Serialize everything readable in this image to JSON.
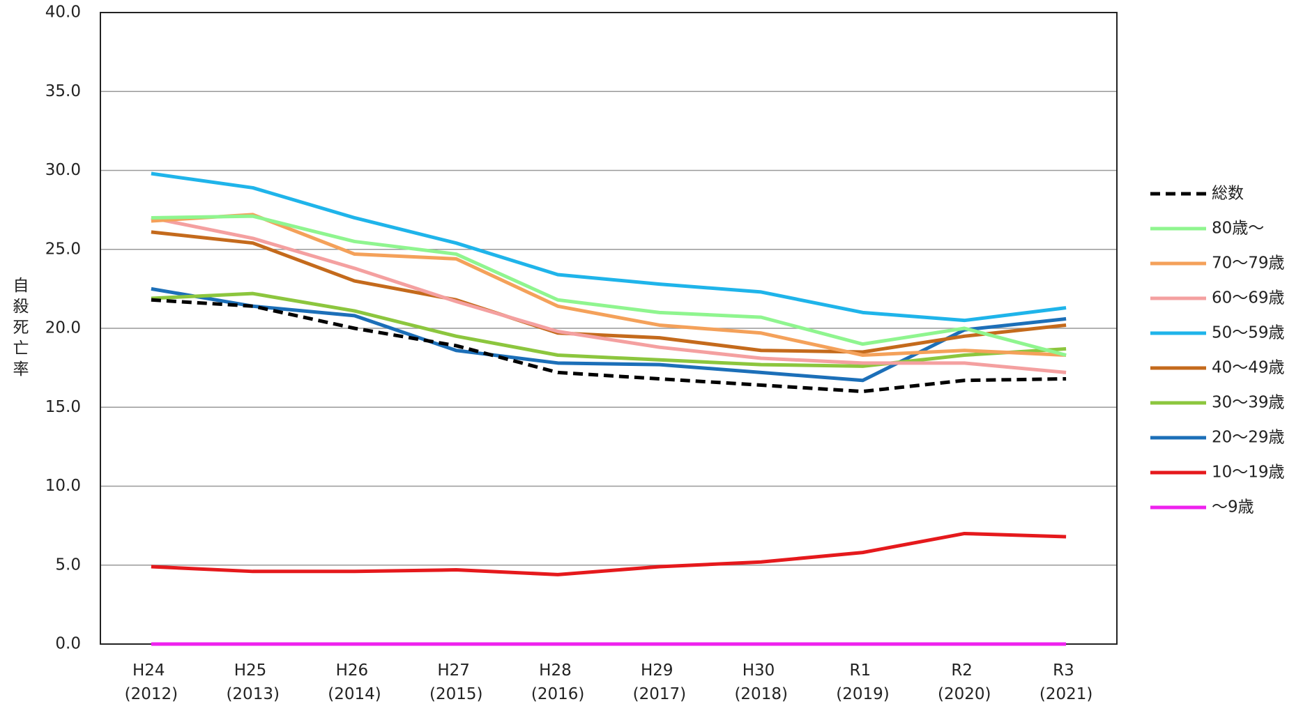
{
  "chart_data": {
    "type": "line",
    "y_label": "自殺死亡率",
    "categories": [
      "H24 (2012)",
      "H25 (2013)",
      "H26 (2014)",
      "H27 (2015)",
      "H28 (2016)",
      "H29 (2017)",
      "H30 (2018)",
      "R1 (2019)",
      "R2 (2020)",
      "R3 (2021)"
    ],
    "ylim": [
      0,
      40
    ],
    "yticks": [
      {
        "value": 0,
        "label": "0.0"
      },
      {
        "value": 5,
        "label": "5.0"
      },
      {
        "value": 10,
        "label": "10.0"
      },
      {
        "value": 15,
        "label": "15.0"
      },
      {
        "value": 20,
        "label": "20.0"
      },
      {
        "value": 25,
        "label": "25.0"
      },
      {
        "value": 30,
        "label": "30.0"
      },
      {
        "value": 35,
        "label": "35.0"
      },
      {
        "value": 40,
        "label": "40.0"
      }
    ],
    "grid": true,
    "legend": "right",
    "series": [
      {
        "name": "総数",
        "color": "#000000",
        "style": "dashed",
        "values": [
          21.8,
          21.4,
          20.0,
          18.9,
          17.2,
          16.8,
          16.4,
          16.0,
          16.7,
          16.8
        ]
      },
      {
        "name": "80歳〜",
        "color": "#8ff58f",
        "values": [
          27.0,
          27.1,
          25.5,
          24.7,
          21.8,
          21.0,
          20.7,
          19.0,
          20.0,
          18.3
        ]
      },
      {
        "name": "70〜79歳",
        "color": "#f4a15a",
        "values": [
          26.8,
          27.2,
          24.7,
          24.4,
          21.4,
          20.2,
          19.7,
          18.3,
          18.6,
          18.3
        ]
      },
      {
        "name": "60〜69歳",
        "color": "#f4a0a0",
        "values": [
          27.0,
          25.7,
          23.8,
          21.7,
          19.8,
          18.8,
          18.1,
          17.8,
          17.8,
          17.2
        ]
      },
      {
        "name": "50〜59歳",
        "color": "#1fb4ea",
        "values": [
          29.8,
          28.9,
          27.0,
          25.4,
          23.4,
          22.8,
          22.3,
          21.0,
          20.5,
          21.3
        ]
      },
      {
        "name": "40〜49歳",
        "color": "#c46a1c",
        "values": [
          26.1,
          25.4,
          23.0,
          21.8,
          19.7,
          19.4,
          18.6,
          18.5,
          19.5,
          20.2
        ]
      },
      {
        "name": "30〜39歳",
        "color": "#8cc63e",
        "values": [
          21.9,
          22.2,
          21.1,
          19.5,
          18.3,
          18.0,
          17.7,
          17.6,
          18.3,
          18.7
        ]
      },
      {
        "name": "20〜29歳",
        "color": "#1c6fb8",
        "values": [
          22.5,
          21.4,
          20.8,
          18.6,
          17.8,
          17.7,
          17.2,
          16.7,
          19.9,
          20.6
        ]
      },
      {
        "name": "10〜19歳",
        "color": "#e5191c",
        "values": [
          4.9,
          4.6,
          4.6,
          4.7,
          4.4,
          4.9,
          5.2,
          5.8,
          7.0,
          6.8
        ]
      },
      {
        "name": "〜9歳",
        "color": "#ee22ee",
        "values": [
          0,
          0,
          0,
          0,
          0,
          0,
          0,
          0,
          0,
          0
        ]
      }
    ]
  }
}
